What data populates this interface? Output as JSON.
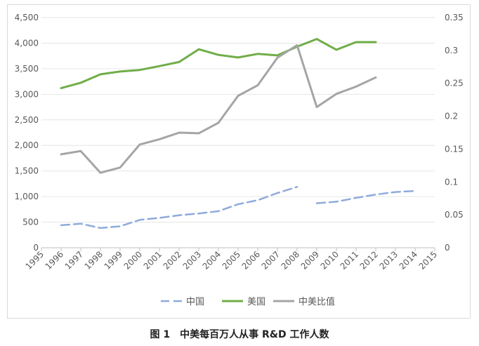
{
  "chart_data": {
    "type": "line",
    "title": "",
    "x": [
      "1995",
      "1996",
      "1997",
      "1998",
      "1999",
      "2000",
      "2001",
      "2002",
      "2003",
      "2004",
      "2005",
      "2006",
      "2007",
      "2008",
      "2009",
      "2010",
      "2011",
      "2012",
      "2013",
      "2014",
      "2015"
    ],
    "yleft": {
      "ylim": [
        0,
        4500
      ],
      "ticks": [
        "0",
        "500",
        "1,000",
        "1,500",
        "2,000",
        "2,500",
        "3,000",
        "3,500",
        "4,000",
        "4,500"
      ]
    },
    "yright": {
      "ylim": [
        0,
        0.35
      ],
      "ticks": [
        "0",
        "0.05",
        "0.1",
        "0.15",
        "0.2",
        "0.25",
        "0.3",
        "0.35"
      ]
    },
    "series": [
      {
        "name": "中国",
        "axis": "left",
        "color": "#8faadc",
        "dash": true,
        "values": [
          null,
          440,
          470,
          385,
          420,
          545,
          585,
          635,
          670,
          715,
          850,
          930,
          1070,
          1190,
          870,
          900,
          975,
          1040,
          1090,
          1110,
          null
        ],
        "break_after": "2008"
      },
      {
        "name": "美国",
        "axis": "left",
        "color": "#70ad47",
        "dash": false,
        "values": [
          null,
          3120,
          3225,
          3390,
          3445,
          3475,
          3550,
          3630,
          3880,
          3770,
          3720,
          3790,
          3760,
          3930,
          4080,
          3870,
          4020,
          4020,
          null,
          null,
          null
        ]
      },
      {
        "name": "中美比值",
        "axis": "right",
        "color": "#a5a5a5",
        "dash": false,
        "values": [
          null,
          0.142,
          0.147,
          0.114,
          0.122,
          0.157,
          0.165,
          0.175,
          0.174,
          0.19,
          0.231,
          0.247,
          0.289,
          0.308,
          0.214,
          0.234,
          0.245,
          0.259,
          null,
          null,
          null
        ]
      }
    ]
  },
  "caption": "图 1　中美每百万人从事 R&D 工作人数"
}
